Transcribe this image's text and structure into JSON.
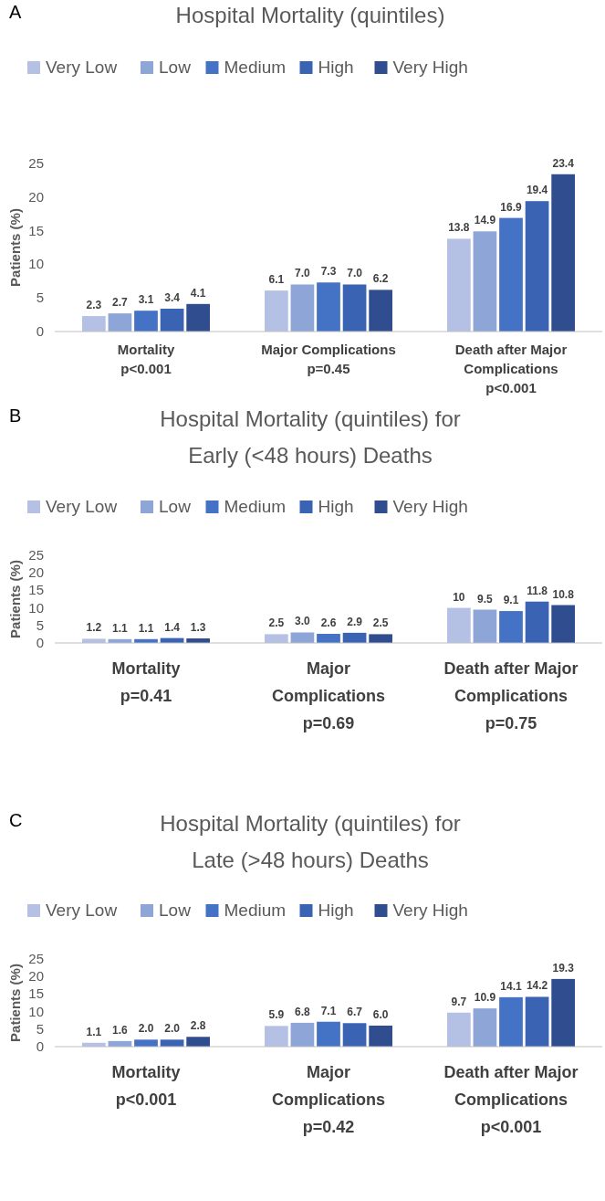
{
  "chart_data": [
    {
      "type": "bar",
      "title": "Hospital Mortality (quintiles)",
      "annotations": [
        "A"
      ],
      "ylabel": "Patients (%)",
      "ylim": [
        0,
        25
      ],
      "yticks": [
        0,
        5,
        10,
        15,
        20,
        25
      ],
      "legend": "top",
      "categories": [
        "Mortality\np<0.001",
        "Major Complications\np=0.45",
        "Death after Major\nComplications\np<0.001"
      ],
      "series": [
        {
          "name": "Very Low",
          "color": "#b4c1e4",
          "values": [
            2.3,
            6.1,
            13.8
          ],
          "value_labels": [
            "2.3",
            "6.1",
            "13.8"
          ]
        },
        {
          "name": "Low",
          "color": "#8ea5d8",
          "values": [
            2.7,
            7.0,
            14.9
          ],
          "value_labels": [
            "2.7",
            "7.0",
            "14.9"
          ]
        },
        {
          "name": "Medium",
          "color": "#4472c4",
          "values": [
            3.1,
            7.3,
            16.9
          ],
          "value_labels": [
            "3.1",
            "7.3",
            "16.9"
          ]
        },
        {
          "name": "High",
          "color": "#3b63b3",
          "values": [
            3.4,
            7.0,
            19.4
          ],
          "value_labels": [
            "3.4",
            "7.0",
            "19.4"
          ]
        },
        {
          "name": "Very High",
          "color": "#2f4d8f",
          "values": [
            4.1,
            6.2,
            23.4
          ],
          "value_labels": [
            "4.1",
            "6.2",
            "23.4"
          ]
        }
      ]
    },
    {
      "type": "bar",
      "title": "Hospital Mortality (quintiles) for\nEarly (<48 hours) Deaths",
      "annotations": [
        "B"
      ],
      "ylabel": "Patients (%)",
      "ylim": [
        0,
        25
      ],
      "yticks": [
        0,
        5,
        10,
        15,
        20,
        25
      ],
      "legend": "top",
      "categories": [
        "Mortality\np=0.41",
        "Major\nComplications\np=0.69",
        "Death after Major\nComplications\np=0.75"
      ],
      "series": [
        {
          "name": "Very Low",
          "color": "#b4c1e4",
          "values": [
            1.2,
            2.5,
            10
          ],
          "value_labels": [
            "1.2",
            "2.5",
            "10"
          ]
        },
        {
          "name": "Low",
          "color": "#8ea5d8",
          "values": [
            1.1,
            3.0,
            9.5
          ],
          "value_labels": [
            "1.1",
            "3.0",
            "9.5"
          ]
        },
        {
          "name": "Medium",
          "color": "#4472c4",
          "values": [
            1.1,
            2.6,
            9.1
          ],
          "value_labels": [
            "1.1",
            "2.6",
            "9.1"
          ]
        },
        {
          "name": "High",
          "color": "#3b63b3",
          "values": [
            1.4,
            2.9,
            11.8
          ],
          "value_labels": [
            "1.4",
            "2.9",
            "11.8"
          ]
        },
        {
          "name": "Very High",
          "color": "#2f4d8f",
          "values": [
            1.3,
            2.5,
            10.8
          ],
          "value_labels": [
            "1.3",
            "2.5",
            "10.8"
          ]
        }
      ]
    },
    {
      "type": "bar",
      "title": "Hospital Mortality (quintiles) for\nLate (>48 hours) Deaths",
      "annotations": [
        "C"
      ],
      "ylabel": "Patients (%)",
      "ylim": [
        0,
        25
      ],
      "yticks": [
        0,
        5,
        10,
        15,
        20,
        25
      ],
      "legend": "top",
      "categories": [
        "Mortality\np<0.001",
        "Major\nComplications\np=0.42",
        "Death after Major\nComplications\np<0.001"
      ],
      "series": [
        {
          "name": "Very Low",
          "color": "#b4c1e4",
          "values": [
            1.1,
            5.9,
            9.7
          ],
          "value_labels": [
            "1.1",
            "5.9",
            "9.7"
          ]
        },
        {
          "name": "Low",
          "color": "#8ea5d8",
          "values": [
            1.6,
            6.8,
            10.9
          ],
          "value_labels": [
            "1.6",
            "6.8",
            "10.9"
          ]
        },
        {
          "name": "Medium",
          "color": "#4472c4",
          "values": [
            2.0,
            7.1,
            14.1
          ],
          "value_labels": [
            "2.0",
            "7.1",
            "14.1"
          ]
        },
        {
          "name": "High",
          "color": "#3b63b3",
          "values": [
            2.0,
            6.7,
            14.2
          ],
          "value_labels": [
            "2.0",
            "6.7",
            "14.2"
          ]
        },
        {
          "name": "Very High",
          "color": "#2f4d8f",
          "values": [
            2.8,
            6.0,
            19.3
          ],
          "value_labels": [
            "2.8",
            "6.0",
            "19.3"
          ]
        }
      ]
    }
  ]
}
